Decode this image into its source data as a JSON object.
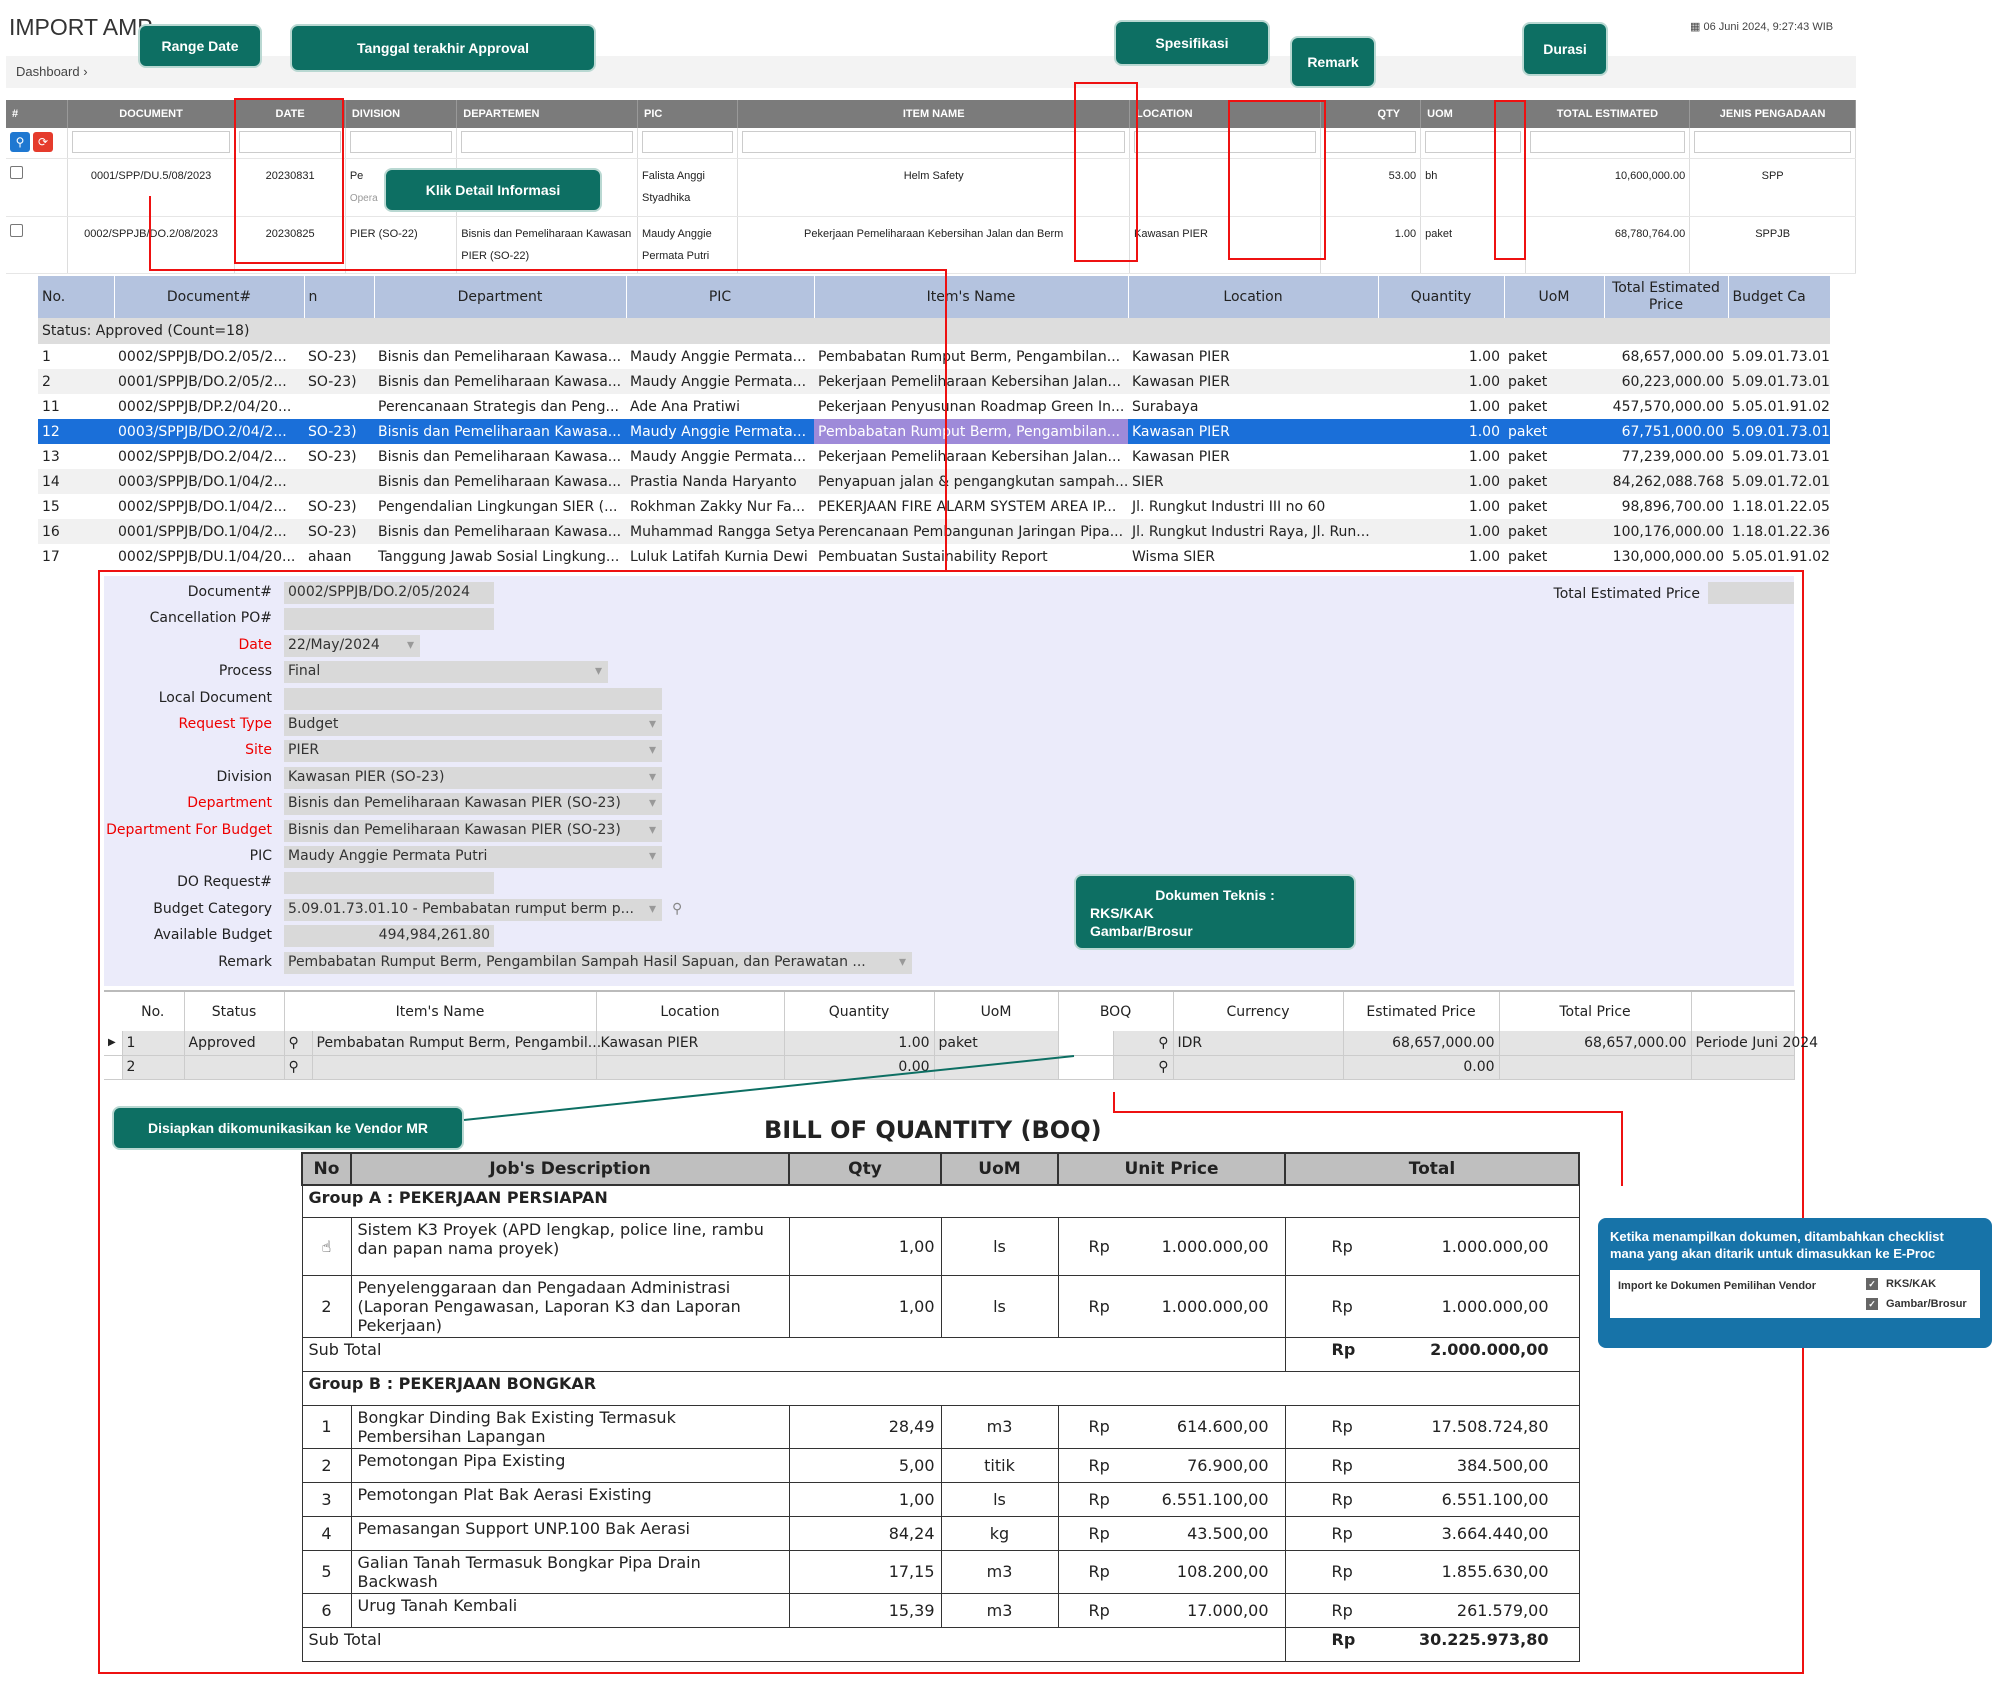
{
  "header": {
    "title": "IMPORT AMP",
    "datetime": "06 Juni 2024, 9:27:43 WIB",
    "breadcrumb": "Dashboard ›"
  },
  "top_grid": {
    "columns": [
      "#",
      "DOCUMENT",
      "DATE",
      "DIVISION",
      "DEPARTEMEN",
      "PIC",
      "ITEM NAME",
      "LOCATION",
      "QTY",
      "UOM",
      "TOTAL ESTIMATED",
      "JENIS PENGADAAN"
    ],
    "rows": [
      {
        "document": "0001/SPP/DU.5/08/2023",
        "date": "20230831",
        "division": "Pe",
        "division2": "Opera",
        "departemen": "",
        "pic": "Falista Anggi Styadhika",
        "item": "Helm Safety",
        "location": "",
        "qty": "53.00",
        "uom": "bh",
        "total": "10,600,000.00",
        "jenis": "SPP"
      },
      {
        "document": "0002/SPPJB/DO.2/08/2023",
        "date": "20230825",
        "division": "PIER (SO-22)",
        "departemen": "Bisnis dan Pemeliharaan Kawasan PIER (SO-22)",
        "pic": "Maudy Anggie Permata Putri",
        "item": "Pekerjaan Pemeliharaan Kebersihan Jalan dan Berm",
        "location": "Kawasan PIER",
        "qty": "1.00",
        "uom": "paket",
        "total": "68,780,764.00",
        "jenis": "SPPJB"
      }
    ]
  },
  "callouts": {
    "range_date": "Range Date",
    "tanggal": "Tanggal terakhir Approval",
    "spesifikasi": "Spesifikasi",
    "remark": "Remark",
    "durasi": "Durasi",
    "klik_detail": "Klik Detail Informasi",
    "dokumen_teknis_title": "Dokumen Teknis :",
    "dokumen_teknis_1": "RKS/KAK",
    "dokumen_teknis_2": "Gambar/Brosur",
    "disiapkan": "Disiapkan dikomunikasikan ke Vendor MR"
  },
  "grid2": {
    "columns": [
      "No.",
      "Document#",
      "n",
      "Department",
      "PIC",
      "Item's Name",
      "Location",
      "Quantity",
      "UoM",
      "Total Estimated Price",
      "Budget Ca"
    ],
    "status": "Status: Approved (Count=18)",
    "rows": [
      [
        "1",
        "0002/SPPJB/DO.2/05/2...",
        "SO-23)",
        "Bisnis dan Pemeliharaan Kawasa...",
        "Maudy Anggie Permata...",
        "Pembabatan Rumput Berm, Pengambilan...",
        "Kawasan PIER",
        "1.00",
        "paket",
        "68,657,000.00",
        "5.09.01.73.01"
      ],
      [
        "2",
        "0001/SPPJB/DO.2/05/2...",
        "SO-23)",
        "Bisnis dan Pemeliharaan Kawasa...",
        "Maudy Anggie Permata...",
        "Pekerjaan Pemeliharaan Kebersihan Jalan...",
        "Kawasan PIER",
        "1.00",
        "paket",
        "60,223,000.00",
        "5.09.01.73.01"
      ],
      [
        "11",
        "0002/SPPJB/DP.2/04/20...",
        "",
        "Perencanaan Strategis dan Peng...",
        "Ade Ana Pratiwi",
        "Pekerjaan Penyusunan Roadmap Green In...",
        "Surabaya",
        "1.00",
        "paket",
        "457,570,000.00",
        "5.05.01.91.02"
      ],
      [
        "12",
        "0003/SPPJB/DO.2/04/2...",
        "SO-23)",
        "Bisnis dan Pemeliharaan Kawasa...",
        "Maudy Anggie Permata...",
        "Pembabatan Rumput Berm, Pengambilan...",
        "Kawasan PIER",
        "1.00",
        "paket",
        "67,751,000.00",
        "5.09.01.73.01"
      ],
      [
        "13",
        "0002/SPPJB/DO.2/04/2...",
        "SO-23)",
        "Bisnis dan Pemeliharaan Kawasa...",
        "Maudy Anggie Permata...",
        "Pekerjaan Pemeliharaan Kebersihan Jalan...",
        "Kawasan PIER",
        "1.00",
        "paket",
        "77,239,000.00",
        "5.09.01.73.01"
      ],
      [
        "14",
        "0003/SPPJB/DO.1/04/2...",
        "",
        "Bisnis dan Pemeliharaan Kawasa...",
        "Prastia Nanda Haryanto",
        "Penyapuan jalan & pengangkutan sampah...",
        "SIER",
        "1.00",
        "paket",
        "84,262,088.768",
        "5.09.01.72.01"
      ],
      [
        "15",
        "0002/SPPJB/DO.1/04/2...",
        "SO-23)",
        "Pengendalian Lingkungan SIER (...",
        "Rokhman Zakky Nur Fa...",
        "PEKERJAAN FIRE ALARM SYSTEM AREA IP...",
        "Jl. Rungkut Industri III no 60",
        "1.00",
        "paket",
        "98,896,700.00",
        "1.18.01.22.05"
      ],
      [
        "16",
        "0001/SPPJB/DO.1/04/2...",
        "SO-23)",
        "Bisnis dan Pemeliharaan Kawasa...",
        "Muhammad Rangga Setya",
        "Perencanaan Pembangunan Jaringan Pipa...",
        "Jl. Rungkut Industri Raya, Jl. Run...",
        "1.00",
        "paket",
        "100,176,000.00",
        "1.18.01.22.36"
      ],
      [
        "17",
        "0002/SPPJB/DU.1/04/20...",
        "ahaan",
        "Tanggung Jawab Sosial Lingkung...",
        "Luluk Latifah Kurnia Dewi",
        "Pembuatan Sustainability Report",
        "Wisma SIER",
        "1.00",
        "paket",
        "130,000,000.00",
        "5.05.01.91.02"
      ]
    ]
  },
  "form": {
    "labels": {
      "document": "Document#",
      "cancel": "Cancellation PO#",
      "date": "Date",
      "process": "Process",
      "local": "Local Document",
      "reqtype": "Request Type",
      "site": "Site",
      "division": "Division",
      "department": "Department",
      "deptbudget": "Department For Budget",
      "pic": "PIC",
      "doreq": "DO Request#",
      "budgetcat": "Budget Category",
      "avail": "Available Budget",
      "remark": "Remark",
      "total": "Total Estimated Price"
    },
    "values": {
      "document": "0002/SPPJB/DO.2/05/2024",
      "cancel": "",
      "date": "22/May/2024",
      "process": "Final",
      "local": "",
      "reqtype": "Budget",
      "site": "PIER",
      "division": "Kawasan PIER (SO-23)",
      "department": "Bisnis dan Pemeliharaan Kawasan PIER (SO-23)",
      "deptbudget": "Bisnis dan Pemeliharaan Kawasan PIER (SO-23)",
      "pic": "Maudy Anggie Permata Putri",
      "doreq": "",
      "budgetcat": "5.09.01.73.01.10 - Pembabatan rumput berm p...",
      "avail": "494,984,261.80",
      "remark": "Pembabatan Rumput Berm, Pengambilan Sampah Hasil Sapuan, dan Perawatan ...",
      "total": ""
    }
  },
  "lines": {
    "columns": [
      "No.",
      "Status",
      "Item's Name",
      "Location",
      "Quantity",
      "UoM",
      "BOQ",
      "Currency",
      "Estimated Price",
      "Total Price"
    ],
    "rows": [
      {
        "no": "1",
        "status": "Approved",
        "item": "Pembabatan Rumput Berm, Pengambil...",
        "location": "Kawasan PIER",
        "qty": "1.00",
        "uom": "paket",
        "currency": "IDR",
        "est": "68,657,000.00",
        "total": "68,657,000.00",
        "note": "Periode Juni 2024"
      },
      {
        "no": "2",
        "status": "",
        "item": "",
        "location": "",
        "qty": "0.00",
        "uom": "",
        "currency": "",
        "est": "0.00",
        "total": "",
        "note": ""
      }
    ]
  },
  "boq": {
    "title": "BILL OF QUANTITY (BOQ)",
    "columns": [
      "No",
      "Job's Description",
      "Qty",
      "UoM",
      "Unit Price",
      "Total"
    ],
    "group_a": "Group A :   PEKERJAAN PERSIAPAN",
    "group_b": "Group B :   PEKERJAAN BONGKAR",
    "sub_total": "Sub Total",
    "rp": "Rp",
    "a_rows": [
      {
        "no": "",
        "desc": "Sistem K3 Proyek (APD lengkap, police line, rambu dan papan nama proyek)",
        "qty": "1,00",
        "uom": "ls",
        "price": "1.000.000,00",
        "total": "1.000.000,00"
      },
      {
        "no": "2",
        "desc": "Penyelenggaraan dan Pengadaan Administrasi (Laporan Pengawasan, Laporan K3 dan Laporan Pekerjaan)",
        "qty": "1,00",
        "uom": "ls",
        "price": "1.000.000,00",
        "total": "1.000.000,00"
      }
    ],
    "a_subtotal": "2.000.000,00",
    "b_rows": [
      {
        "no": "1",
        "desc": "Bongkar Dinding Bak Existing Termasuk Pembersihan Lapangan",
        "qty": "28,49",
        "uom": "m3",
        "price": "614.600,00",
        "total": "17.508.724,80"
      },
      {
        "no": "2",
        "desc": "Pemotongan Pipa Existing",
        "qty": "5,00",
        "uom": "titik",
        "price": "76.900,00",
        "total": "384.500,00"
      },
      {
        "no": "3",
        "desc": "Pemotongan Plat Bak Aerasi Existing",
        "qty": "1,00",
        "uom": "ls",
        "price": "6.551.100,00",
        "total": "6.551.100,00"
      },
      {
        "no": "4",
        "desc": "Pemasangan Support UNP.100 Bak Aerasi",
        "qty": "84,24",
        "uom": "kg",
        "price": "43.500,00",
        "total": "3.664.440,00"
      },
      {
        "no": "5",
        "desc": "Galian Tanah Termasuk Bongkar Pipa Drain Backwash",
        "qty": "17,15",
        "uom": "m3",
        "price": "108.200,00",
        "total": "1.855.630,00"
      },
      {
        "no": "6",
        "desc": "Urug Tanah Kembali",
        "qty": "15,39",
        "uom": "m3",
        "price": "17.000,00",
        "total": "261.579,00"
      }
    ],
    "b_subtotal": "30.225.973,80"
  },
  "note": {
    "text": "Ketika menampilkan dokumen, ditambahkan checklist mana yang akan ditarik untuk dimasukkan ke E-Proc",
    "label": "Import ke Dokumen Pemilihan Vendor",
    "opt1": "RKS/KAK",
    "opt2": "Gambar/Brosur"
  },
  "colors": {
    "teal": "#0d6f63",
    "red": "#e11111",
    "select_blue": "#1a6fd9",
    "header_gray": "#7b7b7b",
    "form_bg": "#ebebfa"
  }
}
